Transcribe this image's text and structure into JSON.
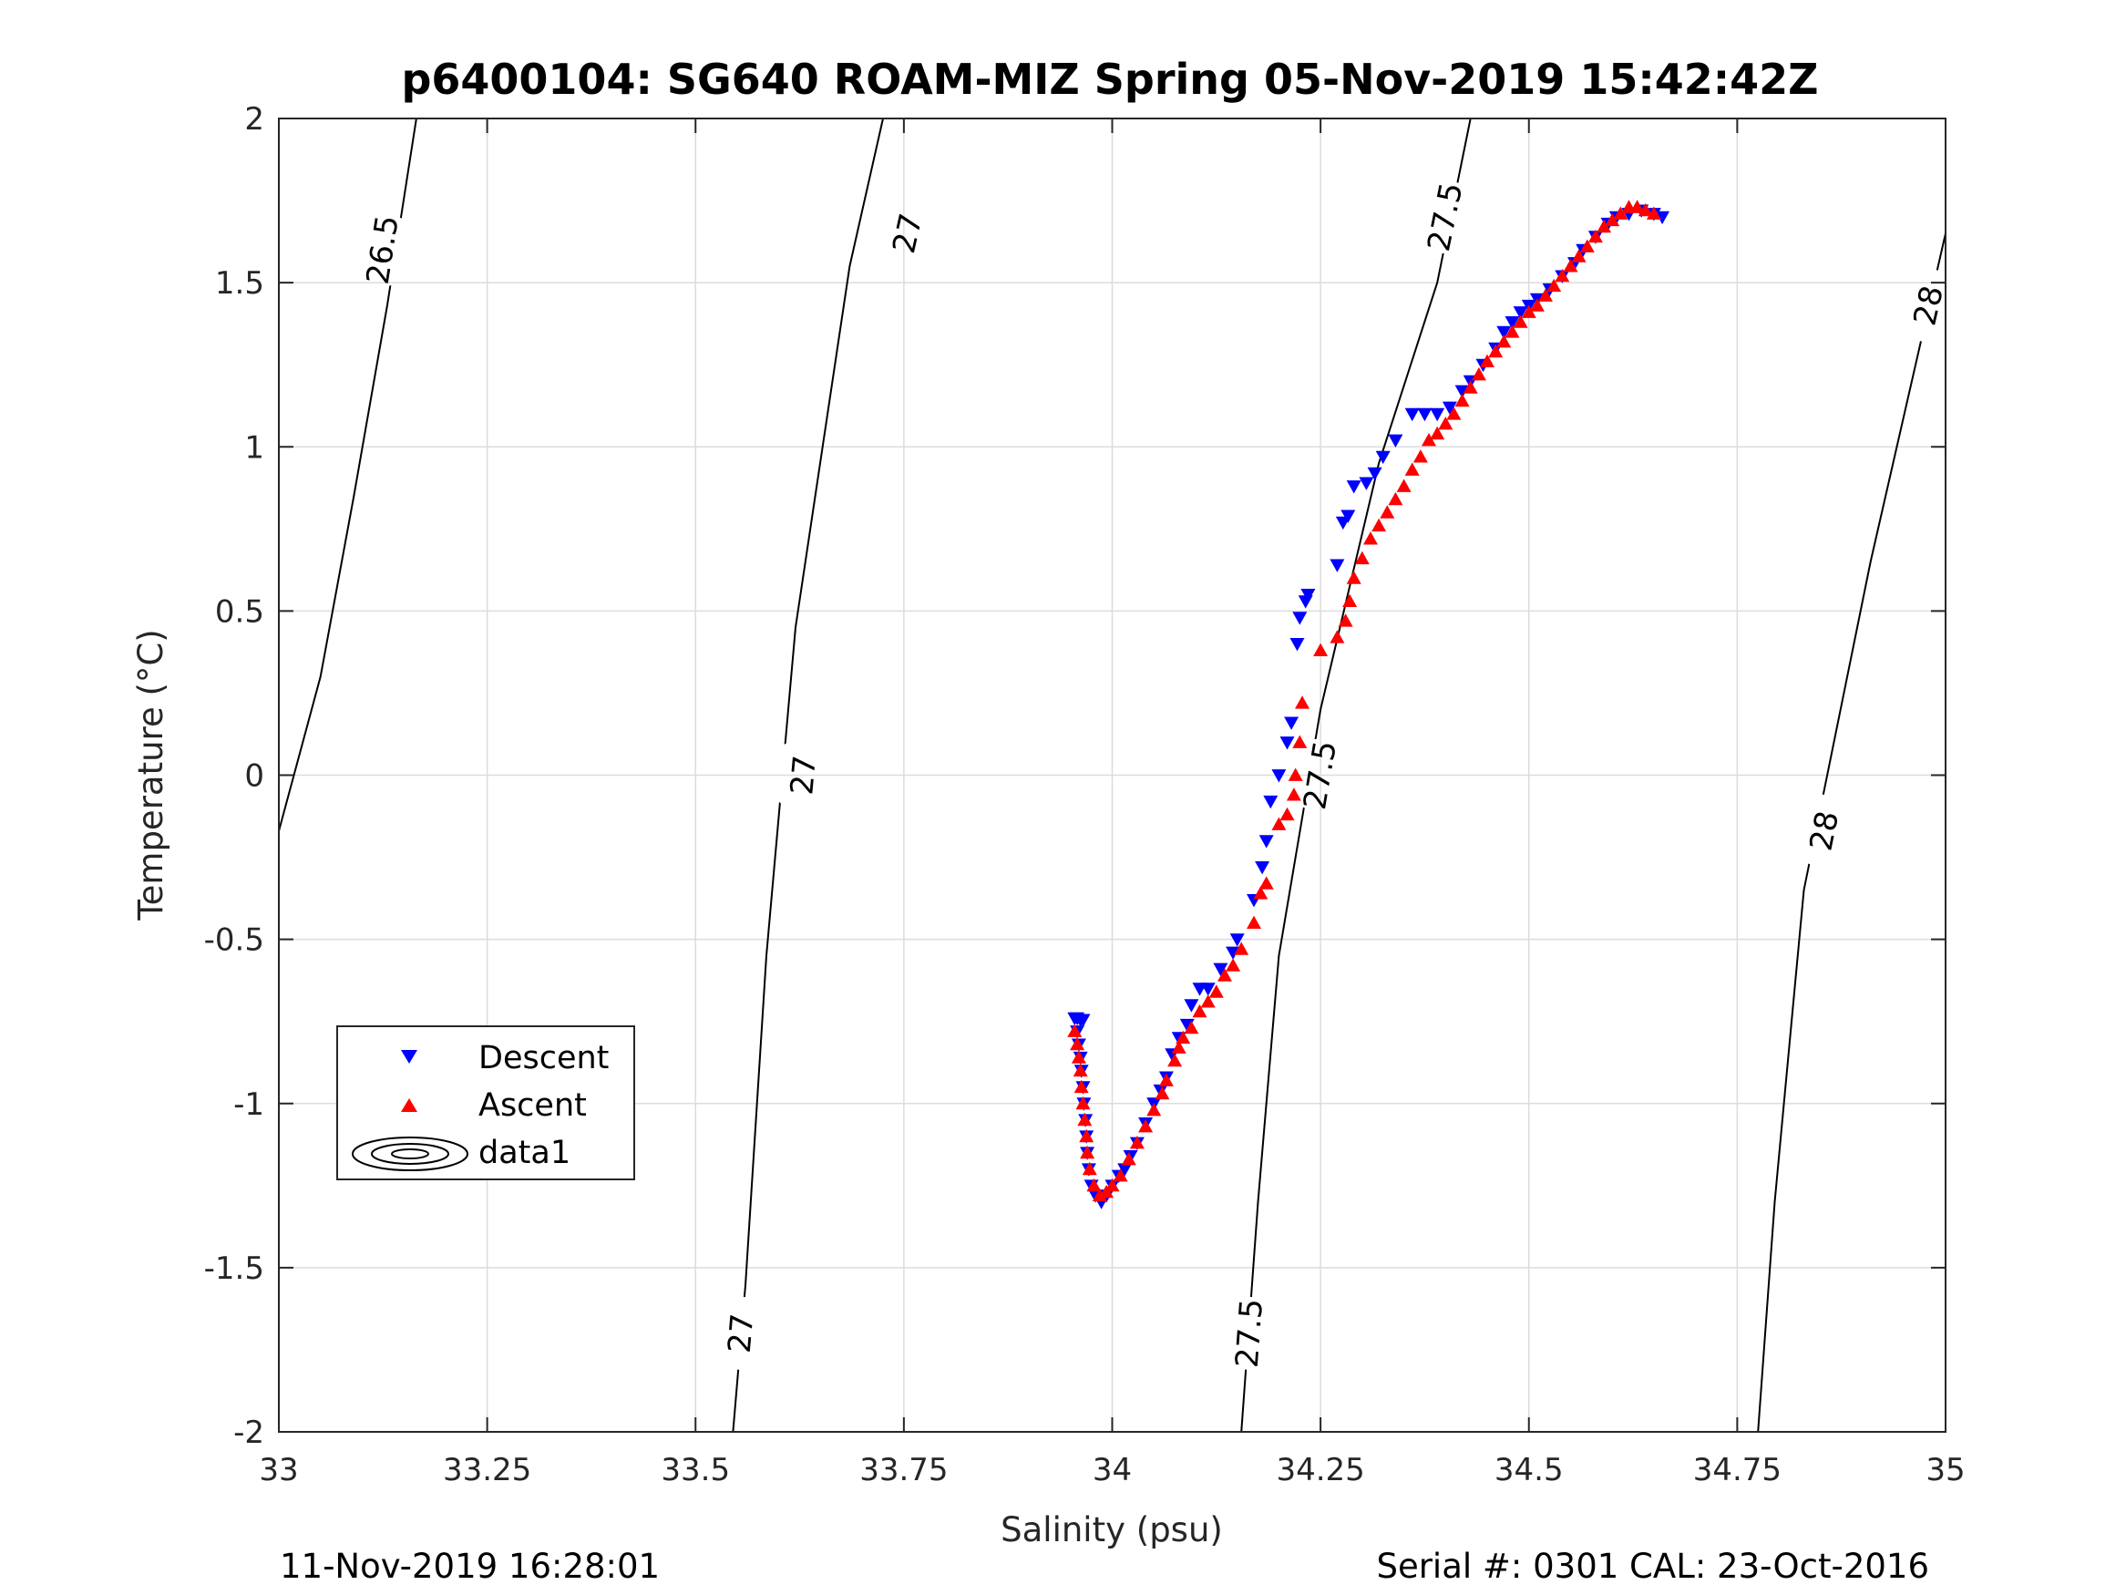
{
  "chart_data": {
    "type": "scatter",
    "title": "p6400104: SG640 ROAM-MIZ Spring 05-Nov-2019 15:42:42Z",
    "xlabel": "Salinity (psu)",
    "ylabel": "Temperature (°C)",
    "xlim": [
      33,
      35
    ],
    "ylim": [
      -2,
      2
    ],
    "x_ticks": [
      33,
      33.25,
      33.5,
      33.75,
      34,
      34.25,
      34.5,
      34.75,
      35
    ],
    "x_tick_labels": [
      "33",
      "33.25",
      "33.5",
      "33.75",
      "34",
      "34.25",
      "34.5",
      "34.75",
      "35"
    ],
    "y_ticks": [
      2,
      1.5,
      1,
      0.5,
      0,
      -0.5,
      -1,
      -1.5,
      -2
    ],
    "y_tick_labels": [
      "2",
      "1.5",
      "1",
      "0.5",
      "0",
      "-0.5",
      "-1",
      "-1.5",
      "-2"
    ],
    "grid": true,
    "legend_position": "lower-left",
    "legend": [
      "Descent",
      "Ascent",
      "data1"
    ],
    "colors": {
      "descent": "#0000ff",
      "ascent": "#ff0000",
      "contour": "#000000",
      "grid": "#dcdcdc"
    },
    "footer_left": "11-Nov-2019 16:28:01",
    "footer_right": "Serial #: 0301  CAL: 23-Oct-2016",
    "contours": [
      {
        "level": 26.5,
        "points": [
          [
            33.0,
            -0.17
          ],
          [
            33.05,
            0.3
          ],
          [
            33.09,
            0.85
          ],
          [
            33.13,
            1.43
          ],
          [
            33.165,
            2.0
          ]
        ],
        "labels": [
          {
            "text": "26.5",
            "x": 33.125,
            "y": 1.6
          }
        ]
      },
      {
        "level": 27,
        "points": [
          [
            33.545,
            -2.0
          ],
          [
            33.56,
            -1.55
          ],
          [
            33.585,
            -0.55
          ],
          [
            33.62,
            0.45
          ],
          [
            33.685,
            1.55
          ],
          [
            33.725,
            2.0
          ]
        ],
        "labels": [
          {
            "text": "27",
            "x": 33.555,
            "y": -1.7
          },
          {
            "text": "27",
            "x": 33.63,
            "y": -0.0
          },
          {
            "text": "27",
            "x": 33.755,
            "y": 1.65
          }
        ]
      },
      {
        "level": 27.5,
        "points": [
          [
            34.155,
            -2.0
          ],
          [
            34.175,
            -1.3
          ],
          [
            34.2,
            -0.55
          ],
          [
            34.25,
            0.2
          ],
          [
            34.32,
            0.95
          ],
          [
            34.39,
            1.5
          ],
          [
            34.43,
            2.0
          ]
        ],
        "labels": [
          {
            "text": "27.5",
            "x": 34.165,
            "y": -1.7
          },
          {
            "text": "27.5",
            "x": 34.25,
            "y": -0.0
          },
          {
            "text": "27.5",
            "x": 34.4,
            "y": 1.7
          }
        ]
      },
      {
        "level": 28,
        "points": [
          [
            34.775,
            -2.0
          ],
          [
            34.795,
            -1.3
          ],
          [
            34.83,
            -0.35
          ],
          [
            34.91,
            0.65
          ],
          [
            35.0,
            1.65
          ]
        ],
        "labels": [
          {
            "text": "28",
            "x": 34.855,
            "y": -0.17
          },
          {
            "text": "28",
            "x": 34.98,
            "y": 1.43
          }
        ]
      }
    ],
    "series": [
      {
        "name": "Descent",
        "marker": "triangle-down",
        "color": "#0000ff",
        "points": [
          [
            33.955,
            -0.74
          ],
          [
            33.958,
            -0.74
          ],
          [
            33.962,
            -0.745
          ],
          [
            33.965,
            -0.745
          ],
          [
            33.958,
            -0.78
          ],
          [
            33.96,
            -0.82
          ],
          [
            33.962,
            -0.86
          ],
          [
            33.963,
            -0.9
          ],
          [
            33.965,
            -0.95
          ],
          [
            33.966,
            -1.0
          ],
          [
            33.968,
            -1.05
          ],
          [
            33.969,
            -1.1
          ],
          [
            33.97,
            -1.15
          ],
          [
            33.972,
            -1.2
          ],
          [
            33.975,
            -1.25
          ],
          [
            33.98,
            -1.28
          ],
          [
            33.987,
            -1.3
          ],
          [
            33.993,
            -1.28
          ],
          [
            34.0,
            -1.25
          ],
          [
            34.008,
            -1.22
          ],
          [
            34.015,
            -1.2
          ],
          [
            34.022,
            -1.16
          ],
          [
            34.03,
            -1.12
          ],
          [
            34.04,
            -1.06
          ],
          [
            34.05,
            -1.0
          ],
          [
            34.058,
            -0.96
          ],
          [
            34.065,
            -0.92
          ],
          [
            34.072,
            -0.85
          ],
          [
            34.08,
            -0.8
          ],
          [
            34.09,
            -0.76
          ],
          [
            34.095,
            -0.7
          ],
          [
            34.105,
            -0.65
          ],
          [
            34.115,
            -0.65
          ],
          [
            34.13,
            -0.59
          ],
          [
            34.145,
            -0.54
          ],
          [
            34.15,
            -0.5
          ],
          [
            34.17,
            -0.38
          ],
          [
            34.18,
            -0.28
          ],
          [
            34.185,
            -0.2
          ],
          [
            34.19,
            -0.08
          ],
          [
            34.2,
            0.0
          ],
          [
            34.21,
            0.1
          ],
          [
            34.215,
            0.16
          ],
          [
            34.222,
            0.4
          ],
          [
            34.225,
            0.48
          ],
          [
            34.232,
            0.53
          ],
          [
            34.235,
            0.55
          ],
          [
            34.27,
            0.64
          ],
          [
            34.277,
            0.77
          ],
          [
            34.283,
            0.79
          ],
          [
            34.29,
            0.88
          ],
          [
            34.305,
            0.89
          ],
          [
            34.315,
            0.92
          ],
          [
            34.325,
            0.97
          ],
          [
            34.34,
            1.02
          ],
          [
            34.36,
            1.1
          ],
          [
            34.375,
            1.1
          ],
          [
            34.39,
            1.1
          ],
          [
            34.405,
            1.12
          ],
          [
            34.42,
            1.17
          ],
          [
            34.43,
            1.2
          ],
          [
            34.445,
            1.25
          ],
          [
            34.46,
            1.3
          ],
          [
            34.47,
            1.35
          ],
          [
            34.48,
            1.38
          ],
          [
            34.49,
            1.41
          ],
          [
            34.5,
            1.43
          ],
          [
            34.51,
            1.45
          ],
          [
            34.525,
            1.48
          ],
          [
            34.54,
            1.52
          ],
          [
            34.555,
            1.56
          ],
          [
            34.565,
            1.6
          ],
          [
            34.58,
            1.64
          ],
          [
            34.595,
            1.68
          ],
          [
            34.605,
            1.7
          ],
          [
            34.62,
            1.71
          ],
          [
            34.635,
            1.72
          ],
          [
            34.65,
            1.71
          ],
          [
            34.66,
            1.7
          ]
        ]
      },
      {
        "name": "Ascent",
        "marker": "triangle-up",
        "color": "#ff0000",
        "points": [
          [
            33.955,
            -0.78
          ],
          [
            33.958,
            -0.82
          ],
          [
            33.96,
            -0.86
          ],
          [
            33.962,
            -0.9
          ],
          [
            33.963,
            -0.95
          ],
          [
            33.965,
            -1.0
          ],
          [
            33.967,
            -1.05
          ],
          [
            33.969,
            -1.1
          ],
          [
            33.97,
            -1.15
          ],
          [
            33.973,
            -1.2
          ],
          [
            33.978,
            -1.25
          ],
          [
            33.985,
            -1.28
          ],
          [
            33.993,
            -1.27
          ],
          [
            34.0,
            -1.25
          ],
          [
            34.01,
            -1.22
          ],
          [
            34.02,
            -1.17
          ],
          [
            34.03,
            -1.12
          ],
          [
            34.04,
            -1.07
          ],
          [
            34.05,
            -1.02
          ],
          [
            34.06,
            -0.97
          ],
          [
            34.065,
            -0.93
          ],
          [
            34.075,
            -0.87
          ],
          [
            34.08,
            -0.83
          ],
          [
            34.085,
            -0.8
          ],
          [
            34.095,
            -0.77
          ],
          [
            34.105,
            -0.72
          ],
          [
            34.115,
            -0.69
          ],
          [
            34.125,
            -0.66
          ],
          [
            34.135,
            -0.61
          ],
          [
            34.145,
            -0.58
          ],
          [
            34.155,
            -0.53
          ],
          [
            34.17,
            -0.45
          ],
          [
            34.178,
            -0.36
          ],
          [
            34.185,
            -0.33
          ],
          [
            34.2,
            -0.15
          ],
          [
            34.21,
            -0.12
          ],
          [
            34.218,
            -0.06
          ],
          [
            34.22,
            0.0
          ],
          [
            34.225,
            0.1
          ],
          [
            34.228,
            0.22
          ],
          [
            34.25,
            0.38
          ],
          [
            34.27,
            0.42
          ],
          [
            34.28,
            0.47
          ],
          [
            34.285,
            0.53
          ],
          [
            34.29,
            0.6
          ],
          [
            34.3,
            0.66
          ],
          [
            34.31,
            0.72
          ],
          [
            34.32,
            0.76
          ],
          [
            34.33,
            0.8
          ],
          [
            34.34,
            0.84
          ],
          [
            34.35,
            0.88
          ],
          [
            34.36,
            0.93
          ],
          [
            34.37,
            0.97
          ],
          [
            34.38,
            1.02
          ],
          [
            34.39,
            1.04
          ],
          [
            34.4,
            1.07
          ],
          [
            34.41,
            1.1
          ],
          [
            34.42,
            1.14
          ],
          [
            34.43,
            1.18
          ],
          [
            34.44,
            1.22
          ],
          [
            34.45,
            1.26
          ],
          [
            34.46,
            1.29
          ],
          [
            34.47,
            1.32
          ],
          [
            34.48,
            1.35
          ],
          [
            34.49,
            1.38
          ],
          [
            34.5,
            1.41
          ],
          [
            34.51,
            1.43
          ],
          [
            34.52,
            1.46
          ],
          [
            34.53,
            1.49
          ],
          [
            34.54,
            1.52
          ],
          [
            34.55,
            1.55
          ],
          [
            34.56,
            1.58
          ],
          [
            34.57,
            1.61
          ],
          [
            34.58,
            1.64
          ],
          [
            34.59,
            1.67
          ],
          [
            34.6,
            1.69
          ],
          [
            34.61,
            1.71
          ],
          [
            34.62,
            1.73
          ],
          [
            34.63,
            1.73
          ],
          [
            34.64,
            1.72
          ],
          [
            34.65,
            1.71
          ]
        ]
      }
    ]
  }
}
